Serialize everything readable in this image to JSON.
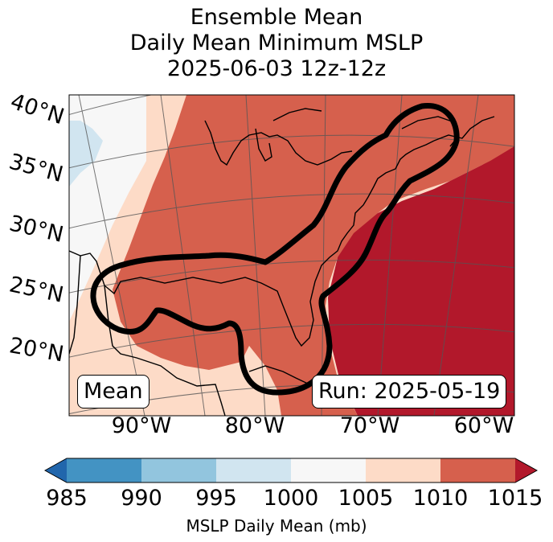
{
  "title": {
    "line1": "Ensemble Mean",
    "line2": "Daily Mean Minimum MSLP",
    "line3": "2025-06-03 12z-12z"
  },
  "map": {
    "lat_labels": [
      "40°N",
      "35°N",
      "30°N",
      "25°N",
      "20°N"
    ],
    "lon_labels": [
      "90°W",
      "80°W",
      "70°W",
      "60°W"
    ],
    "mean_box": "Mean",
    "run_box": "Run: 2025-05-19",
    "colors": {
      "c1000": "#f7f7f7",
      "c995": "#d1e5f0",
      "c1005": "#fddbc7",
      "c1010": "#d6604d",
      "c1015": "#b2182b",
      "contour": "#000000",
      "coast": "#000000",
      "grid": "#555555"
    }
  },
  "colorbar": {
    "ticks": [
      "985",
      "990",
      "995",
      "1000",
      "1005",
      "1010",
      "1015"
    ],
    "colors": [
      "#4393c3",
      "#92c5de",
      "#d1e5f0",
      "#f7f7f7",
      "#fddbc7",
      "#d6604d"
    ],
    "extend_low": "#2166ac",
    "extend_high": "#b2182b",
    "title": "MSLP Daily Mean (mb)"
  }
}
